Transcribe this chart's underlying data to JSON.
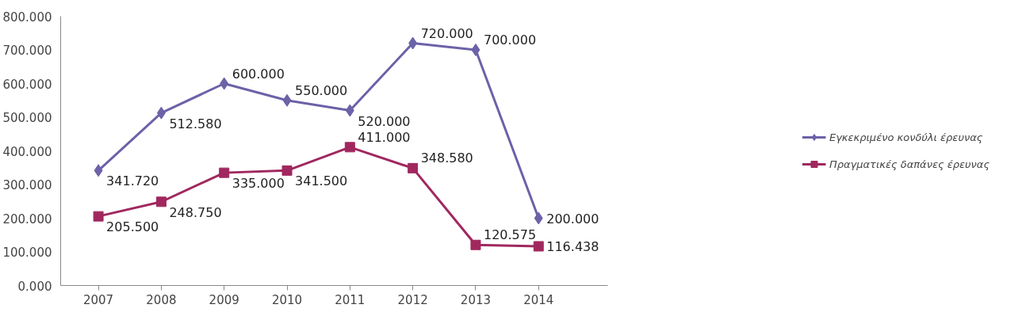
{
  "chart_data": {
    "type": "line",
    "categories": [
      "2007",
      "2008",
      "2009",
      "2010",
      "2011",
      "2012",
      "2013",
      "2014"
    ],
    "series": [
      {
        "name": "Εγκεκριμένο κονδύλι έρευνας",
        "color": "#6b62a8",
        "marker": "diamond",
        "values": [
          341.72,
          512.58,
          600,
          550,
          520,
          720,
          700,
          200
        ],
        "value_labels": [
          "341.720",
          "512.580",
          "600.000",
          "550.000",
          "520.000",
          "720.000",
          "700.000",
          "200.000"
        ]
      },
      {
        "name": "Πραγματικές δαπάνες έρευνας",
        "color": "#a0285f",
        "marker": "square",
        "values": [
          205.5,
          248.75,
          335,
          341.5,
          411,
          348.58,
          120.575,
          116.438
        ],
        "value_labels": [
          "205.500",
          "248.750",
          "335.000",
          "341.500",
          "411.000",
          "348.580",
          "120.575",
          "116.438"
        ]
      }
    ],
    "ylim": [
      0,
      800
    ],
    "yticks": [
      {
        "value": 0,
        "label": "0.000"
      },
      {
        "value": 100,
        "label": "100.000"
      },
      {
        "value": 200,
        "label": "200.000"
      },
      {
        "value": 300,
        "label": "300.000"
      },
      {
        "value": 400,
        "label": "400.000"
      },
      {
        "value": 500,
        "label": "500.000"
      },
      {
        "value": 600,
        "label": "600.000"
      },
      {
        "value": 700,
        "label": "700.000"
      },
      {
        "value": 800,
        "label": "800.000"
      }
    ],
    "grid": false,
    "legend": "right",
    "line_style": "solid"
  }
}
